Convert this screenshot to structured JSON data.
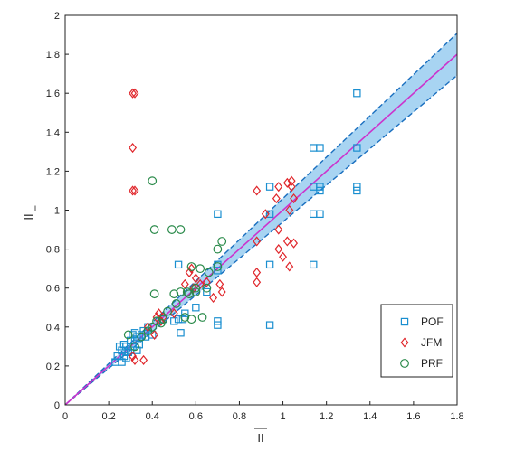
{
  "chart_data": {
    "type": "scatter",
    "xlabel": "II",
    "ylabel": "II",
    "ylabel_subscript": "l",
    "xlim": [
      0,
      1.8
    ],
    "ylim": [
      0,
      2
    ],
    "x_ticks": [
      "0",
      "0.2",
      "0.4",
      "0.6",
      "0.8",
      "1",
      "1.2",
      "1.4",
      "1.6",
      "1.8"
    ],
    "y_ticks": [
      "0",
      "0.2",
      "0.4",
      "0.6",
      "0.8",
      "1",
      "1.2",
      "1.4",
      "1.6",
      "1.8",
      "2"
    ],
    "x_tick_values": [
      0,
      0.2,
      0.4,
      0.6,
      0.8,
      1.0,
      1.2,
      1.4,
      1.6,
      1.8
    ],
    "y_tick_values": [
      0,
      0.2,
      0.4,
      0.6,
      0.8,
      1.0,
      1.2,
      1.4,
      1.6,
      1.8,
      2.0
    ],
    "grid": false,
    "legend_position": "bottom-right",
    "fit_line": {
      "slope": 1.0,
      "color": "#cc33cc"
    },
    "confidence_band": {
      "lower_slope": 0.94,
      "upper_slope": 1.06,
      "fill": "#99ccf0",
      "edge": "#1a6fbf"
    },
    "series": [
      {
        "name": "POF",
        "marker": "square",
        "color": "#1a8fd0",
        "points": [
          [
            0.23,
            0.22
          ],
          [
            0.24,
            0.25
          ],
          [
            0.25,
            0.3
          ],
          [
            0.26,
            0.28
          ],
          [
            0.26,
            0.22
          ],
          [
            0.27,
            0.31
          ],
          [
            0.27,
            0.25
          ],
          [
            0.28,
            0.3
          ],
          [
            0.28,
            0.24
          ],
          [
            0.29,
            0.27
          ],
          [
            0.3,
            0.33
          ],
          [
            0.3,
            0.28
          ],
          [
            0.31,
            0.36
          ],
          [
            0.31,
            0.3
          ],
          [
            0.32,
            0.37
          ],
          [
            0.32,
            0.33
          ],
          [
            0.33,
            0.35
          ],
          [
            0.33,
            0.28
          ],
          [
            0.34,
            0.31
          ],
          [
            0.35,
            0.36
          ],
          [
            0.36,
            0.38
          ],
          [
            0.37,
            0.35
          ],
          [
            0.38,
            0.4
          ],
          [
            0.4,
            0.36
          ],
          [
            0.45,
            0.44
          ],
          [
            0.5,
            0.43
          ],
          [
            0.52,
            0.72
          ],
          [
            0.52,
            0.44
          ],
          [
            0.53,
            0.37
          ],
          [
            0.54,
            0.44
          ],
          [
            0.55,
            0.47
          ],
          [
            0.6,
            0.5
          ],
          [
            0.65,
            0.58
          ],
          [
            0.7,
            0.98
          ],
          [
            0.7,
            0.72
          ],
          [
            0.7,
            0.69
          ],
          [
            0.7,
            0.43
          ],
          [
            0.7,
            0.41
          ],
          [
            0.94,
            1.12
          ],
          [
            0.94,
            0.98
          ],
          [
            0.94,
            0.72
          ],
          [
            0.94,
            0.41
          ],
          [
            1.14,
            1.32
          ],
          [
            1.14,
            1.12
          ],
          [
            1.14,
            0.98
          ],
          [
            1.14,
            0.72
          ],
          [
            1.17,
            1.32
          ],
          [
            1.17,
            1.12
          ],
          [
            1.17,
            1.1
          ],
          [
            1.17,
            0.98
          ],
          [
            1.34,
            1.6
          ],
          [
            1.34,
            1.32
          ],
          [
            1.34,
            1.12
          ],
          [
            1.34,
            1.1
          ]
        ]
      },
      {
        "name": "JFM",
        "marker": "diamond",
        "color": "#e0262b",
        "points": [
          [
            0.31,
            1.6
          ],
          [
            0.31,
            1.32
          ],
          [
            0.31,
            1.1
          ],
          [
            0.32,
            1.6
          ],
          [
            0.32,
            1.1
          ],
          [
            0.31,
            0.25
          ],
          [
            0.32,
            0.23
          ],
          [
            0.36,
            0.23
          ],
          [
            0.38,
            0.4
          ],
          [
            0.41,
            0.36
          ],
          [
            0.42,
            0.45
          ],
          [
            0.43,
            0.47
          ],
          [
            0.44,
            0.43
          ],
          [
            0.45,
            0.45
          ],
          [
            0.5,
            0.47
          ],
          [
            0.55,
            0.62
          ],
          [
            0.57,
            0.68
          ],
          [
            0.58,
            0.7
          ],
          [
            0.59,
            0.6
          ],
          [
            0.6,
            0.65
          ],
          [
            0.62,
            0.62
          ],
          [
            0.65,
            0.63
          ],
          [
            0.68,
            0.55
          ],
          [
            0.71,
            0.62
          ],
          [
            0.72,
            0.58
          ],
          [
            0.88,
            1.1
          ],
          [
            0.88,
            0.84
          ],
          [
            0.88,
            0.68
          ],
          [
            0.88,
            0.63
          ],
          [
            0.92,
            0.98
          ],
          [
            0.97,
            1.06
          ],
          [
            0.98,
            1.12
          ],
          [
            0.98,
            0.9
          ],
          [
            0.98,
            0.8
          ],
          [
            1.0,
            0.76
          ],
          [
            1.02,
            1.14
          ],
          [
            1.02,
            0.84
          ],
          [
            1.03,
            1.0
          ],
          [
            1.03,
            0.71
          ],
          [
            1.04,
            1.15
          ],
          [
            1.04,
            1.12
          ],
          [
            1.05,
            1.06
          ],
          [
            1.05,
            0.83
          ]
        ]
      },
      {
        "name": "PRF",
        "marker": "circle",
        "color": "#2a8a4a",
        "points": [
          [
            0.29,
            0.36
          ],
          [
            0.32,
            0.3
          ],
          [
            0.35,
            0.35
          ],
          [
            0.38,
            0.38
          ],
          [
            0.4,
            0.4
          ],
          [
            0.4,
            1.15
          ],
          [
            0.41,
            0.9
          ],
          [
            0.41,
            0.57
          ],
          [
            0.44,
            0.42
          ],
          [
            0.45,
            0.44
          ],
          [
            0.47,
            0.48
          ],
          [
            0.49,
            0.9
          ],
          [
            0.5,
            0.57
          ],
          [
            0.51,
            0.52
          ],
          [
            0.53,
            0.9
          ],
          [
            0.53,
            0.58
          ],
          [
            0.55,
            0.45
          ],
          [
            0.56,
            0.58
          ],
          [
            0.57,
            0.57
          ],
          [
            0.58,
            0.71
          ],
          [
            0.58,
            0.44
          ],
          [
            0.6,
            0.58
          ],
          [
            0.6,
            0.6
          ],
          [
            0.62,
            0.7
          ],
          [
            0.63,
            0.45
          ],
          [
            0.65,
            0.6
          ],
          [
            0.66,
            0.68
          ],
          [
            0.7,
            0.8
          ],
          [
            0.7,
            0.71
          ],
          [
            0.72,
            0.84
          ],
          [
            0.42,
            0.43
          ]
        ]
      }
    ]
  }
}
